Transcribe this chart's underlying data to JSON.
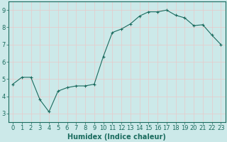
{
  "x": [
    0,
    1,
    2,
    3,
    4,
    5,
    6,
    7,
    8,
    9,
    10,
    11,
    12,
    13,
    14,
    15,
    16,
    17,
    18,
    19,
    20,
    21,
    22,
    23
  ],
  "y": [
    4.7,
    5.1,
    5.1,
    3.8,
    3.1,
    4.3,
    4.5,
    4.6,
    4.6,
    4.7,
    6.3,
    7.7,
    7.9,
    8.2,
    8.65,
    8.9,
    8.9,
    9.0,
    8.7,
    8.55,
    8.1,
    8.15,
    7.55,
    7.0
  ],
  "line_color": "#1a6b5e",
  "marker": "+",
  "markersize": 3,
  "linewidth": 0.8,
  "background_color": "#cce9e9",
  "grid_color": "#e8c8c8",
  "xlabel": "Humidex (Indice chaleur)",
  "xlim": [
    -0.5,
    23.5
  ],
  "ylim": [
    2.5,
    9.5
  ],
  "yticks": [
    3,
    4,
    5,
    6,
    7,
    8,
    9
  ],
  "xticks": [
    0,
    1,
    2,
    3,
    4,
    5,
    6,
    7,
    8,
    9,
    10,
    11,
    12,
    13,
    14,
    15,
    16,
    17,
    18,
    19,
    20,
    21,
    22,
    23
  ],
  "xlabel_fontsize": 7,
  "tick_fontsize": 6,
  "label_color": "#1a6b5e",
  "spine_color": "#1a6b5e"
}
